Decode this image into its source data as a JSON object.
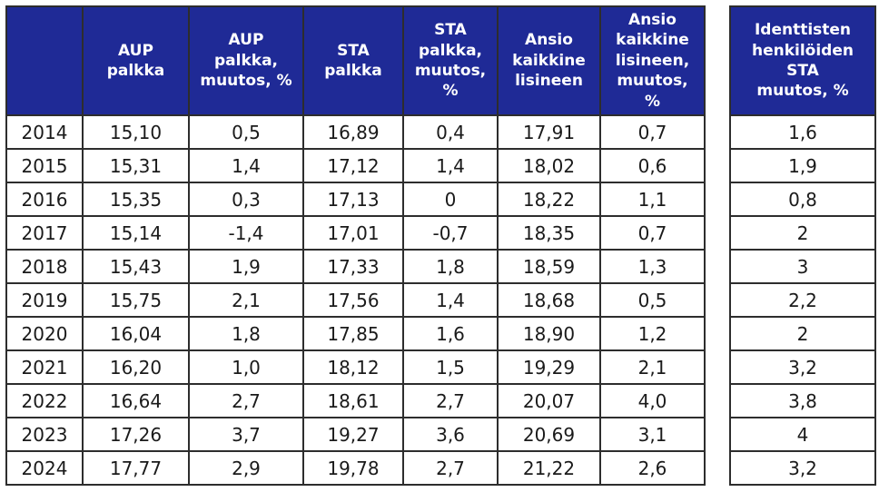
{
  "colors": {
    "header_bg": "#1F2A96",
    "header_text": "#FFFFFF",
    "border": "#2D2D2D",
    "cell_text": "#1A1A1A",
    "page_bg": "#FFFFFF"
  },
  "table": {
    "columns": [
      "",
      "AUP\npalkka",
      "AUP\npalkka,\nmuutos, %",
      "STA\npalkka",
      "STA\npalkka,\nmuutos,\n%",
      "Ansio\nkaikkine\nlisineen",
      "Ansio\nkaikkine\nlisineen,\nmuutos,\n%"
    ],
    "rows": [
      {
        "year": "2014",
        "values": [
          "15,10",
          "0,5",
          "16,89",
          "0,4",
          "17,91",
          "0,7"
        ]
      },
      {
        "year": "2015",
        "values": [
          "15,31",
          "1,4",
          "17,12",
          "1,4",
          "18,02",
          "0,6"
        ]
      },
      {
        "year": "2016",
        "values": [
          "15,35",
          "0,3",
          "17,13",
          "0",
          "18,22",
          "1,1"
        ]
      },
      {
        "year": "2017",
        "values": [
          "15,14",
          "-1,4",
          "17,01",
          "-0,7",
          "18,35",
          "0,7"
        ]
      },
      {
        "year": "2018",
        "values": [
          "15,43",
          "1,9",
          "17,33",
          "1,8",
          "18,59",
          "1,3"
        ]
      },
      {
        "year": "2019",
        "values": [
          "15,75",
          "2,1",
          "17,56",
          "1,4",
          "18,68",
          "0,5"
        ]
      },
      {
        "year": "2020",
        "values": [
          "16,04",
          "1,8",
          "17,85",
          "1,6",
          "18,90",
          "1,2"
        ]
      },
      {
        "year": "2021",
        "values": [
          "16,20",
          "1,0",
          "18,12",
          "1,5",
          "19,29",
          "2,1"
        ]
      },
      {
        "year": "2022",
        "values": [
          "16,64",
          "2,7",
          "18,61",
          "2,7",
          "20,07",
          "4,0"
        ]
      },
      {
        "year": "2023",
        "values": [
          "17,26",
          "3,7",
          "19,27",
          "3,6",
          "20,69",
          "3,1"
        ]
      },
      {
        "year": "2024",
        "values": [
          "17,77",
          "2,9",
          "19,78",
          "2,7",
          "21,22",
          "2,6"
        ]
      }
    ]
  },
  "side_table": {
    "header": "Identtisten\nhenkilöiden\nSTA\nmuutos, %",
    "values": [
      "1,6",
      "1,9",
      "0,8",
      "2",
      "3",
      "2,2",
      "2",
      "3,2",
      "3,8",
      "4",
      "3,2"
    ]
  },
  "chart_data": {
    "type": "table",
    "title": "",
    "categories": [
      "2014",
      "2015",
      "2016",
      "2017",
      "2018",
      "2019",
      "2020",
      "2021",
      "2022",
      "2023",
      "2024"
    ],
    "series": [
      {
        "name": "AUP palkka",
        "values": [
          15.1,
          15.31,
          15.35,
          15.14,
          15.43,
          15.75,
          16.04,
          16.2,
          16.64,
          17.26,
          17.77
        ]
      },
      {
        "name": "AUP palkka, muutos, %",
        "values": [
          0.5,
          1.4,
          0.3,
          -1.4,
          1.9,
          2.1,
          1.8,
          1.0,
          2.7,
          3.7,
          2.9
        ]
      },
      {
        "name": "STA palkka",
        "values": [
          16.89,
          17.12,
          17.13,
          17.01,
          17.33,
          17.56,
          17.85,
          18.12,
          18.61,
          19.27,
          19.78
        ]
      },
      {
        "name": "STA palkka, muutos, %",
        "values": [
          0.4,
          1.4,
          0,
          -0.7,
          1.8,
          1.4,
          1.6,
          1.5,
          2.7,
          3.6,
          2.7
        ]
      },
      {
        "name": "Ansio kaikkine lisineen",
        "values": [
          17.91,
          18.02,
          18.22,
          18.35,
          18.59,
          18.68,
          18.9,
          19.29,
          20.07,
          20.69,
          21.22
        ]
      },
      {
        "name": "Ansio kaikkine lisineen, muutos, %",
        "values": [
          0.7,
          0.6,
          1.1,
          0.7,
          1.3,
          0.5,
          1.2,
          2.1,
          4.0,
          3.1,
          2.6
        ]
      },
      {
        "name": "Identtisten henkilöiden STA muutos, %",
        "values": [
          1.6,
          1.9,
          0.8,
          2,
          3,
          2.2,
          2,
          3.2,
          3.8,
          4,
          3.2
        ]
      }
    ],
    "layout_hints": {
      "decimal_separator": ",",
      "grid": "full black cell borders",
      "header_style": "dark navy background, white bold text",
      "side_table_separated": true
    }
  }
}
